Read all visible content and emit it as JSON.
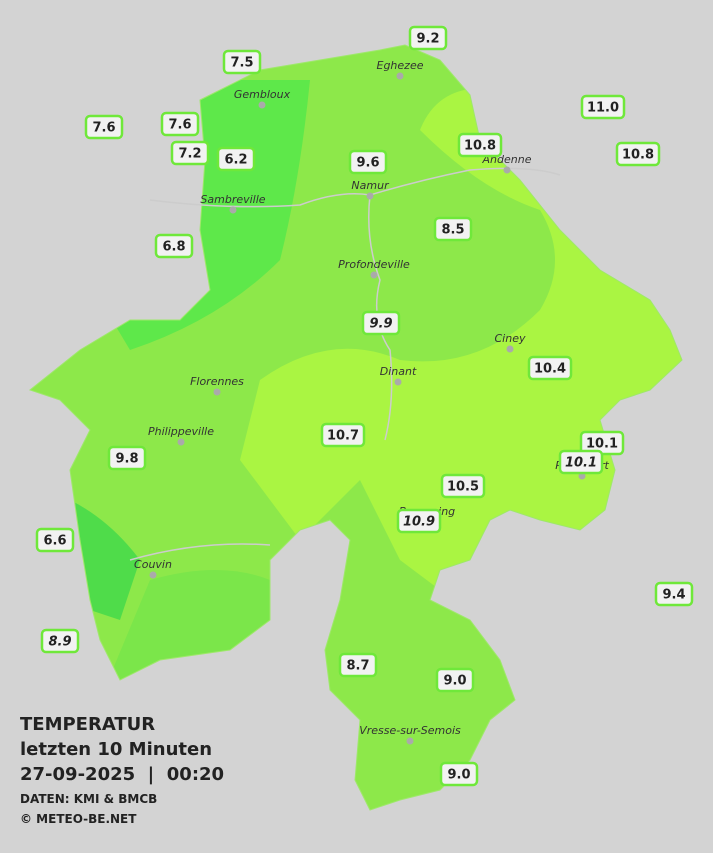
{
  "header": {
    "title": "TEMPERATUR",
    "subtitle": "letzten 10 Minuten",
    "timestamp": "27-09-2025  |  00:20",
    "source": "DATEN: KMI & BMCB",
    "copyright": "© METEO-BE.NET"
  },
  "cities": [
    {
      "name": "Eghezee"
    },
    {
      "name": "Gembloux"
    },
    {
      "name": "Andenne"
    },
    {
      "name": "Namur"
    },
    {
      "name": "Sambreville"
    },
    {
      "name": "Profondeville"
    },
    {
      "name": "Ciney"
    },
    {
      "name": "Dinant"
    },
    {
      "name": "Florennes"
    },
    {
      "name": "Philippeville"
    },
    {
      "name": "Rochefort"
    },
    {
      "name": "Beauraing"
    },
    {
      "name": "Couvin"
    },
    {
      "name": "Vresse-sur-Semois"
    }
  ],
  "stations": [
    {
      "label": "9.2",
      "italic": false
    },
    {
      "label": "7.5",
      "italic": false
    },
    {
      "label": "11.0",
      "italic": false
    },
    {
      "label": "7.6",
      "italic": false
    },
    {
      "label": "7.6",
      "italic": false
    },
    {
      "label": "10.8",
      "italic": false
    },
    {
      "label": "10.8",
      "italic": false
    },
    {
      "label": "7.2",
      "italic": false
    },
    {
      "label": "6.2",
      "italic": false
    },
    {
      "label": "9.6",
      "italic": false
    },
    {
      "label": "8.5",
      "italic": false
    },
    {
      "label": "6.8",
      "italic": false
    },
    {
      "label": "9.9",
      "italic": true
    },
    {
      "label": "10.4",
      "italic": false
    },
    {
      "label": "10.7",
      "italic": false
    },
    {
      "label": "10.1",
      "italic": false
    },
    {
      "label": "10.1",
      "italic": true
    },
    {
      "label": "9.8",
      "italic": false
    },
    {
      "label": "10.5",
      "italic": false
    },
    {
      "label": "10.9",
      "italic": true
    },
    {
      "label": "6.6",
      "italic": false
    },
    {
      "label": "9.4",
      "italic": false
    },
    {
      "label": "8.9",
      "italic": true
    },
    {
      "label": "8.7",
      "italic": false
    },
    {
      "label": "9.0",
      "italic": false
    },
    {
      "label": "9.0",
      "italic": false
    }
  ]
}
